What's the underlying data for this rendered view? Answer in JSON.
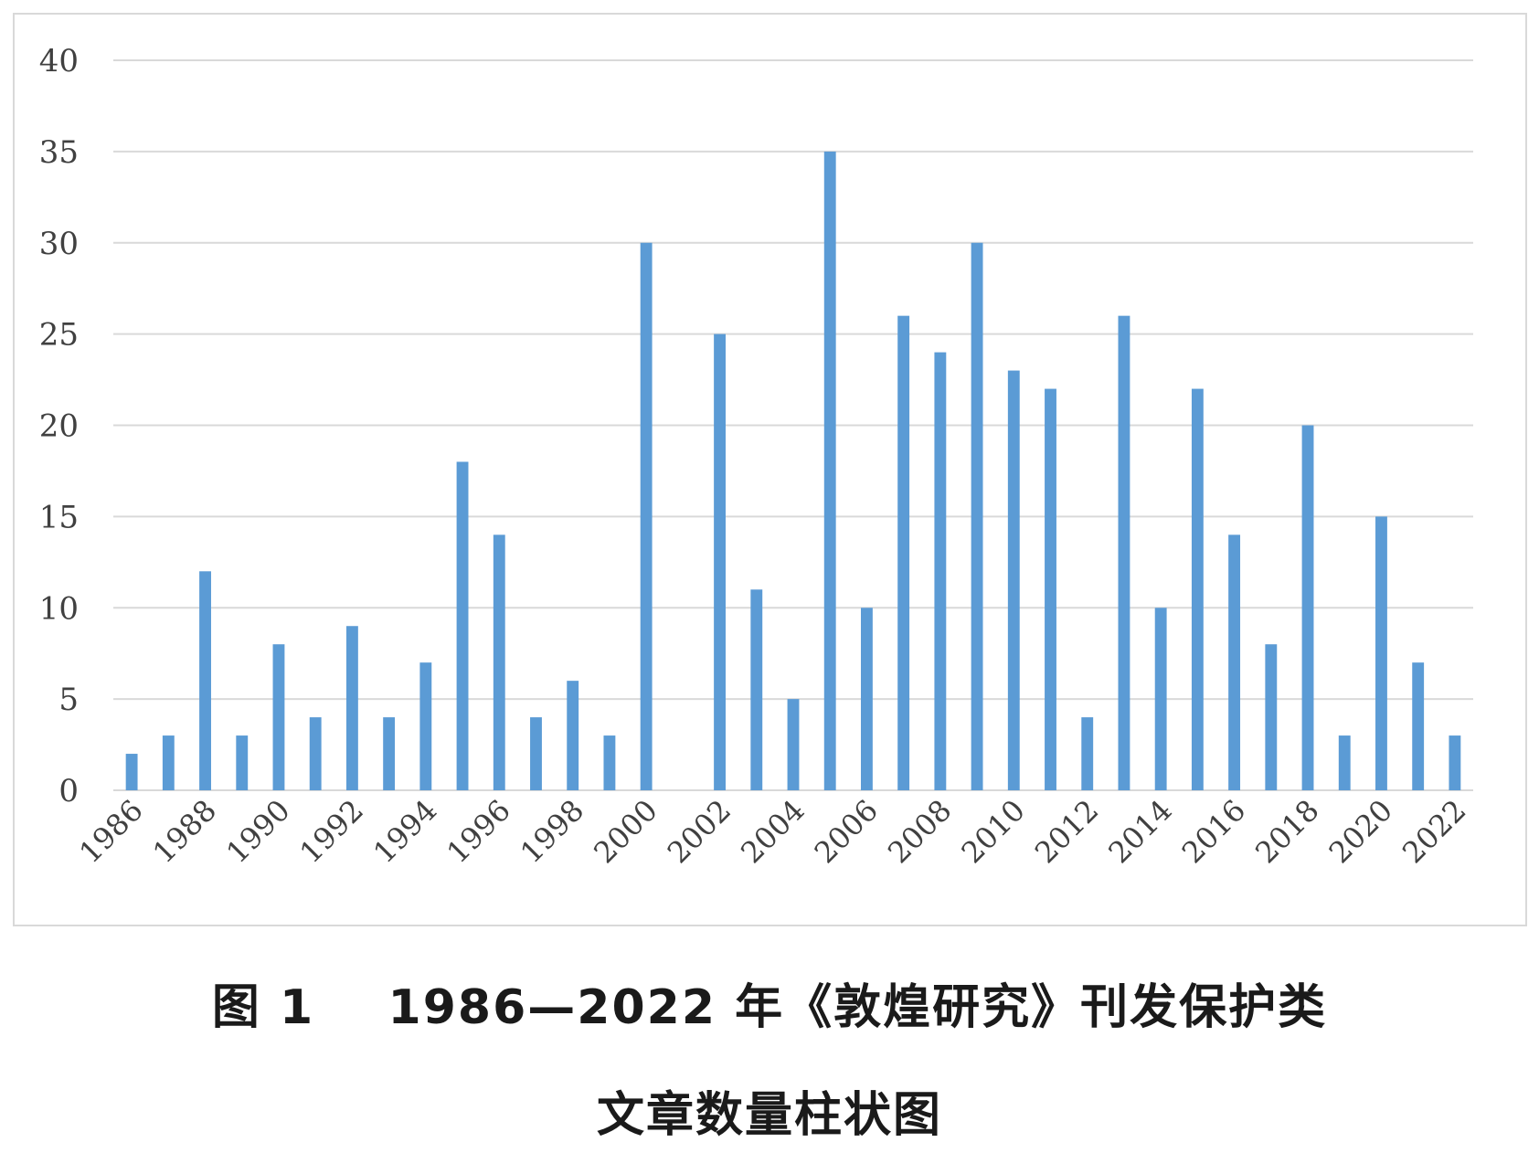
{
  "chart_data": {
    "type": "bar",
    "years": [
      1986,
      1987,
      1988,
      1989,
      1990,
      1991,
      1992,
      1993,
      1994,
      1995,
      1996,
      1997,
      1998,
      1999,
      2000,
      2001,
      2002,
      2003,
      2004,
      2005,
      2006,
      2007,
      2008,
      2009,
      2010,
      2011,
      2012,
      2013,
      2014,
      2015,
      2016,
      2017,
      2018,
      2019,
      2020,
      2021,
      2022
    ],
    "values": [
      2,
      3,
      12,
      3,
      8,
      4,
      9,
      4,
      7,
      18,
      14,
      4,
      6,
      3,
      30,
      0,
      25,
      11,
      5,
      35,
      10,
      26,
      24,
      30,
      23,
      22,
      4,
      26,
      10,
      22,
      14,
      8,
      20,
      3,
      15,
      7,
      3
    ],
    "x_tick_labels": [
      "1986",
      "1988",
      "1990",
      "1992",
      "1994",
      "1996",
      "1998",
      "2000",
      "2002",
      "2004",
      "2006",
      "2008",
      "2010",
      "2012",
      "2014",
      "2016",
      "2018",
      "2020",
      "2022"
    ],
    "y_tick_labels": [
      "0",
      "5",
      "10",
      "15",
      "20",
      "25",
      "30",
      "35",
      "40"
    ],
    "ylim": [
      0,
      40
    ],
    "y_step": 5,
    "grid": "horizontal",
    "legend": "none",
    "bar_color": "#5b9bd5",
    "grid_color": "#d9d9d9",
    "tick_text_color": "#404040"
  },
  "caption": {
    "line1": "图 1    1986—2022 年《敦煌研究》刊发保护类",
    "line2": "文章数量柱状图"
  }
}
